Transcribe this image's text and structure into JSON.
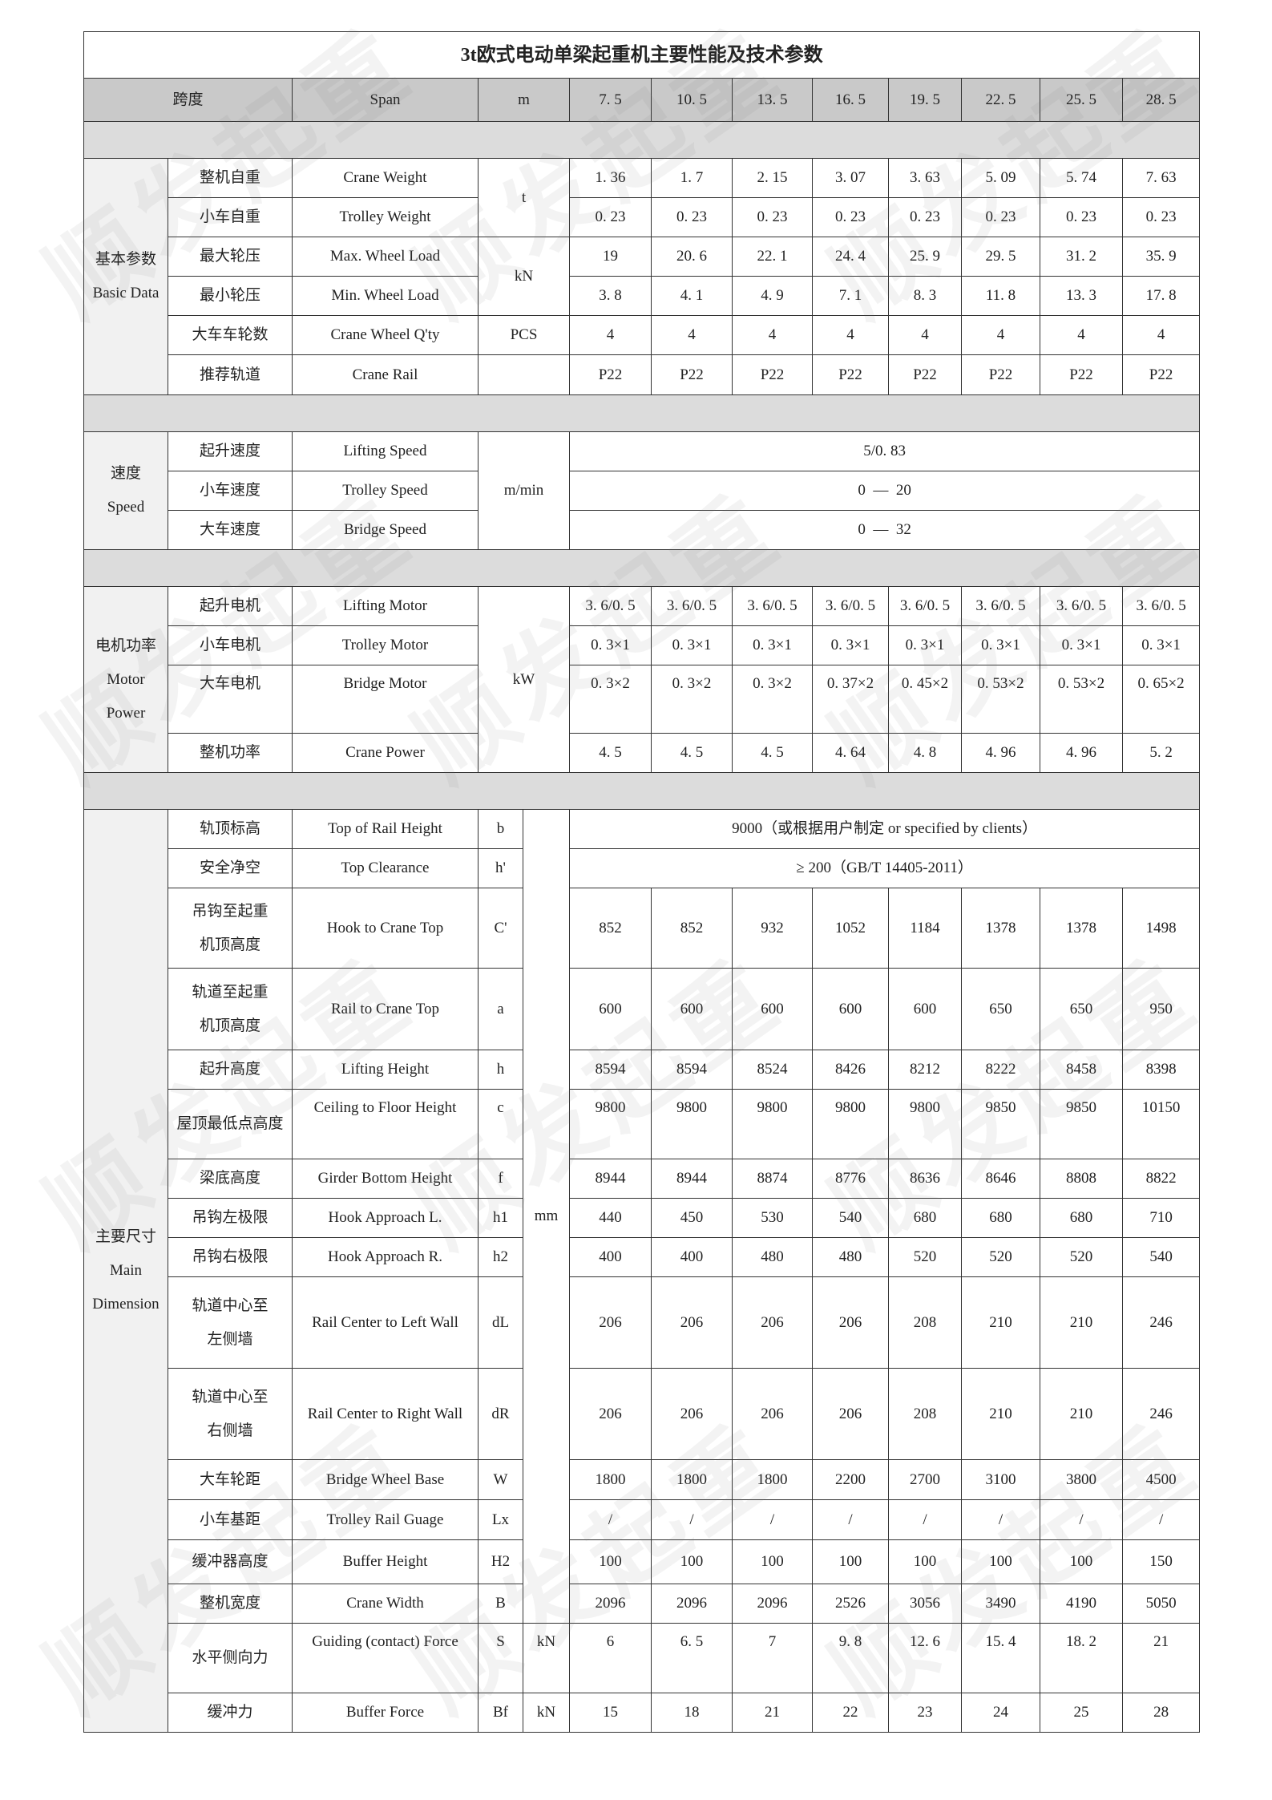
{
  "title": "3t欧式电动单梁起重机主要性能及技术参数",
  "watermark": "顺发起重",
  "header": {
    "zh": "跨度",
    "en": "Span",
    "unit": "m",
    "spans": [
      "7. 5",
      "10. 5",
      "13. 5",
      "16. 5",
      "19. 5",
      "22. 5",
      "25. 5",
      "28. 5"
    ]
  },
  "basic": {
    "group": "基本参数\nBasic Data",
    "rows": [
      {
        "zh": "整机自重",
        "en": "Crane Weight",
        "values": [
          "1. 36",
          "1. 7",
          "2. 15",
          "3. 07",
          "3. 63",
          "5. 09",
          "5. 74",
          "7. 63"
        ]
      },
      {
        "zh": "小车自重",
        "en": "Trolley Weight",
        "values": [
          "0. 23",
          "0. 23",
          "0. 23",
          "0. 23",
          "0. 23",
          "0. 23",
          "0. 23",
          "0. 23"
        ]
      },
      {
        "zh": "最大轮压",
        "en": "Max.  Wheel Load",
        "values": [
          "19",
          "20. 6",
          "22. 1",
          "24. 4",
          "25. 9",
          "29. 5",
          "31. 2",
          "35. 9"
        ]
      },
      {
        "zh": "最小轮压",
        "en": "Min.  Wheel Load",
        "values": [
          "3. 8",
          "4. 1",
          "4. 9",
          "7. 1",
          "8. 3",
          "11. 8",
          "13. 3",
          "17. 8"
        ]
      },
      {
        "zh": "大车车轮数",
        "en": "Crane Wheel Q'ty",
        "unit": "PCS",
        "values": [
          "4",
          "4",
          "4",
          "4",
          "4",
          "4",
          "4",
          "4"
        ]
      },
      {
        "zh": "推荐轨道",
        "en": "Crane Rail",
        "unit": "",
        "values": [
          "P22",
          "P22",
          "P22",
          "P22",
          "P22",
          "P22",
          "P22",
          "P22"
        ]
      }
    ],
    "unit_t": "t",
    "unit_kn": "kN"
  },
  "speed": {
    "group": "速度\nSpeed",
    "unit": "m/min",
    "rows": [
      {
        "zh": "起升速度",
        "en": "Lifting Speed",
        "value": "5/0. 83"
      },
      {
        "zh": "小车速度",
        "en": "Trolley Speed",
        "value": "0  —  20"
      },
      {
        "zh": "大车速度",
        "en": "Bridge Speed",
        "value": "0  —  32"
      }
    ]
  },
  "motor": {
    "group": "电机功率\nMotor\nPower",
    "unit": "kW",
    "rows": [
      {
        "zh": "起升电机",
        "en": "Lifting Motor",
        "values": [
          "3. 6/0. 5",
          "3. 6/0. 5",
          "3. 6/0. 5",
          "3. 6/0. 5",
          "3. 6/0. 5",
          "3. 6/0. 5",
          "3. 6/0. 5",
          "3. 6/0. 5"
        ]
      },
      {
        "zh": "小车电机",
        "en": "Trolley Motor",
        "values": [
          "0. 3×1",
          "0. 3×1",
          "0. 3×1",
          "0. 3×1",
          "0. 3×1",
          "0. 3×1",
          "0. 3×1",
          "0. 3×1"
        ]
      },
      {
        "zh": "大车电机",
        "en": "Bridge Motor",
        "values": [
          "0. 3×2",
          "0. 3×2",
          "0. 3×2",
          "0. 37×2",
          "0. 45×2",
          "0. 53×2",
          "0. 53×2",
          "0. 65×2"
        ]
      },
      {
        "zh": "整机功率",
        "en": "Crane Power",
        "values": [
          "4. 5",
          "4. 5",
          "4. 5",
          "4. 64",
          "4. 8",
          "4. 96",
          "4. 96",
          "5. 2"
        ]
      }
    ]
  },
  "dimension": {
    "group": "主要尺寸\nMain\nDimension",
    "unit_mm": "mm",
    "rows": [
      {
        "zh": "轨顶标高",
        "en": "Top of Rail Height",
        "sym": "b",
        "merged": "9000（或根据用户制定 or specified by clients）"
      },
      {
        "zh": "安全净空",
        "en": "Top Clearance",
        "sym": "h'",
        "merged": "≥ 200（GB/T 14405-2011）"
      },
      {
        "zh": "吊钩至起重\n机顶高度",
        "en": "Hook to Crane Top",
        "sym": "C'",
        "values": [
          "852",
          "852",
          "932",
          "1052",
          "1184",
          "1378",
          "1378",
          "1498"
        ]
      },
      {
        "zh": "轨道至起重\n机顶高度",
        "en": "Rail to Crane Top",
        "sym": "a",
        "values": [
          "600",
          "600",
          "600",
          "600",
          "600",
          "650",
          "650",
          "950"
        ]
      },
      {
        "zh": "起升高度",
        "en": "Lifting Height",
        "sym": "h",
        "values": [
          "8594",
          "8594",
          "8524",
          "8426",
          "8212",
          "8222",
          "8458",
          "8398"
        ]
      },
      {
        "zh": "屋顶最低点高度",
        "en": "Ceiling to Floor Height",
        "sym": "c",
        "values": [
          "9800",
          "9800",
          "9800",
          "9800",
          "9800",
          "9850",
          "9850",
          "10150"
        ]
      },
      {
        "zh": "梁底高度",
        "en": "Girder Bottom Height",
        "sym": "f",
        "values": [
          "8944",
          "8944",
          "8874",
          "8776",
          "8636",
          "8646",
          "8808",
          "8822"
        ]
      },
      {
        "zh": "吊钩左极限",
        "en": "Hook Approach L.",
        "sym": "h1",
        "values": [
          "440",
          "450",
          "530",
          "540",
          "680",
          "680",
          "680",
          "710"
        ]
      },
      {
        "zh": "吊钩右极限",
        "en": "Hook Approach R.",
        "sym": "h2",
        "values": [
          "400",
          "400",
          "480",
          "480",
          "520",
          "520",
          "520",
          "540"
        ]
      },
      {
        "zh": "轨道中心至\n左侧墙",
        "en": "Rail Center to Left Wall",
        "sym": "dL",
        "values": [
          "206",
          "206",
          "206",
          "206",
          "208",
          "210",
          "210",
          "246"
        ]
      },
      {
        "zh": "轨道中心至\n右侧墙",
        "en": "Rail Center to Right Wall",
        "sym": "dR",
        "values": [
          "206",
          "206",
          "206",
          "206",
          "208",
          "210",
          "210",
          "246"
        ]
      },
      {
        "zh": "大车轮距",
        "en": "Bridge Wheel Base",
        "sym": "W",
        "values": [
          "1800",
          "1800",
          "1800",
          "2200",
          "2700",
          "3100",
          "3800",
          "4500"
        ]
      },
      {
        "zh": "小车基距",
        "en": "Trolley Rail Guage",
        "sym": "Lx",
        "values": [
          "/",
          "/",
          "/",
          "/",
          "/",
          "/",
          "/",
          "/"
        ]
      },
      {
        "zh": "缓冲器高度",
        "en": "Buffer Height",
        "sym": "H2",
        "values": [
          "100",
          "100",
          "100",
          "100",
          "100",
          "100",
          "100",
          "150"
        ]
      },
      {
        "zh": "整机宽度",
        "en": "Crane Width",
        "sym": "B",
        "values": [
          "2096",
          "2096",
          "2096",
          "2526",
          "3056",
          "3490",
          "4190",
          "5050"
        ]
      },
      {
        "zh": "水平侧向力",
        "en": "Guiding (contact) Force",
        "sym": "S",
        "unit": "kN",
        "values": [
          "6",
          "6. 5",
          "7",
          "9. 8",
          "12. 6",
          "15. 4",
          "18. 2",
          "21"
        ]
      },
      {
        "zh": "缓冲力",
        "en": "Buffer Force",
        "sym": "Bf",
        "unit": "kN",
        "values": [
          "15",
          "18",
          "21",
          "22",
          "23",
          "24",
          "25",
          "28"
        ]
      }
    ]
  }
}
